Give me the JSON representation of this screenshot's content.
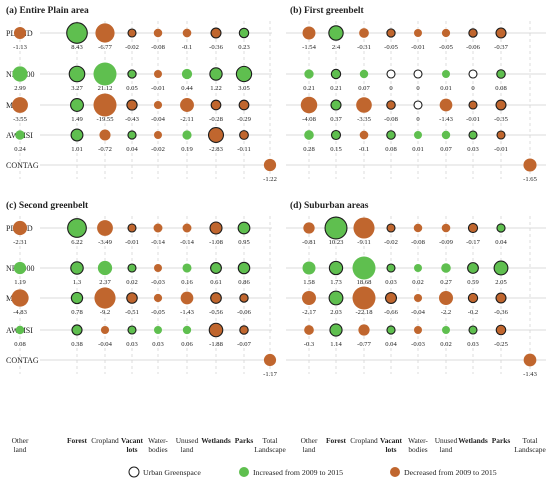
{
  "chart_data": {
    "type": "scatter",
    "colors": {
      "increased": "#5fbf4f",
      "decreased": "#c0662e",
      "urban_greenspace": "#ffffff"
    },
    "categories": [
      "Other land",
      "Forest",
      "Cropland",
      "Vacant lots",
      "Water-bodies",
      "Unused land",
      "Wetlands",
      "Parks",
      "Total Landscape"
    ],
    "category_lines": [
      [
        "Other",
        "land"
      ],
      [
        "Forest"
      ],
      [
        "Cropland"
      ],
      [
        "Vacant",
        "lots"
      ],
      [
        "Water-",
        "bodies"
      ],
      [
        "Unused",
        "land"
      ],
      [
        "Wetlands"
      ],
      [
        "Parks"
      ],
      [
        "Total",
        "Landscape"
      ]
    ],
    "urban_greenspace_categories": [
      "Forest",
      "Vacant lots",
      "Wetlands",
      "Parks"
    ],
    "metrics": [
      "PLAND",
      "NP/1000",
      "MPS",
      "AWMSI",
      "CONTAG"
    ],
    "legend": [
      "Urban Greenspace",
      "Increased from 2009 to 2015",
      "Decreased from 2009 to 2015"
    ],
    "panels": [
      {
        "title": "(a) Entire Plain area",
        "rows": {
          "PLAND": [
            -1.13,
            8.43,
            -6.77,
            -0.02,
            -0.08,
            -0.1,
            -0.36,
            0.23
          ],
          "NP/1000": [
            2.99,
            3.27,
            21.12,
            0.05,
            -0.01,
            0.44,
            1.22,
            3.05
          ],
          "MPS": [
            -3.55,
            1.49,
            -19.55,
            -0.43,
            -0.04,
            -2.11,
            -0.28,
            -0.29
          ],
          "AWMSI": [
            0.24,
            1.01,
            -0.72,
            0.04,
            -0.02,
            0.19,
            -2.83,
            -0.11
          ],
          "CONTAG": [
            -1.22
          ]
        }
      },
      {
        "title": "(b) First greenbelt",
        "rows": {
          "PLAND": [
            -1.54,
            2.4,
            -0.31,
            -0.05,
            -0.01,
            -0.05,
            -0.06,
            -0.37
          ],
          "NP/1000": [
            0.21,
            0.21,
            0.07,
            0,
            0,
            0.01,
            0,
            0.08
          ],
          "MPS": [
            -4.08,
            0.37,
            -3.35,
            -0.08,
            0,
            -1.43,
            -0.01,
            -0.35
          ],
          "AWMSI": [
            0.28,
            0.15,
            -0.1,
            0.08,
            0.01,
            0.07,
            0.03,
            -0.01
          ],
          "CONTAG": [
            -1.65
          ]
        }
      },
      {
        "title": "(c) Second greenbelt",
        "rows": {
          "PLAND": [
            -2.31,
            6.22,
            -3.49,
            -0.01,
            -0.14,
            -0.14,
            -1.08,
            0.95
          ],
          "NP/1000": [
            1.19,
            1.3,
            2.37,
            0.02,
            -0.03,
            0.16,
            0.61,
            0.86
          ],
          "MPS": [
            -4.83,
            0.78,
            -9.2,
            -0.51,
            -0.05,
            -1.43,
            -0.56,
            -0.06
          ],
          "AWMSI": [
            0.08,
            0.38,
            -0.04,
            0.03,
            0.03,
            0.06,
            -1.88,
            -0.07
          ],
          "CONTAG": [
            -1.17
          ]
        }
      },
      {
        "title": "(d) Suburban areas",
        "rows": {
          "PLAND": [
            -0.81,
            10.23,
            -9.11,
            -0.02,
            -0.08,
            -0.09,
            -0.17,
            0.04
          ],
          "NP/1000": [
            1.58,
            1.73,
            18.68,
            0.03,
            0.02,
            0.27,
            0.59,
            2.05
          ],
          "MPS": [
            -2.17,
            2.03,
            -22.18,
            -0.66,
            -0.04,
            -2.2,
            -0.2,
            -0.36
          ],
          "AWMSI": [
            -0.3,
            1.14,
            -0.77,
            0.04,
            -0.03,
            0.02,
            0.03,
            -0.25
          ],
          "CONTAG": [
            -1.43
          ]
        }
      }
    ]
  }
}
